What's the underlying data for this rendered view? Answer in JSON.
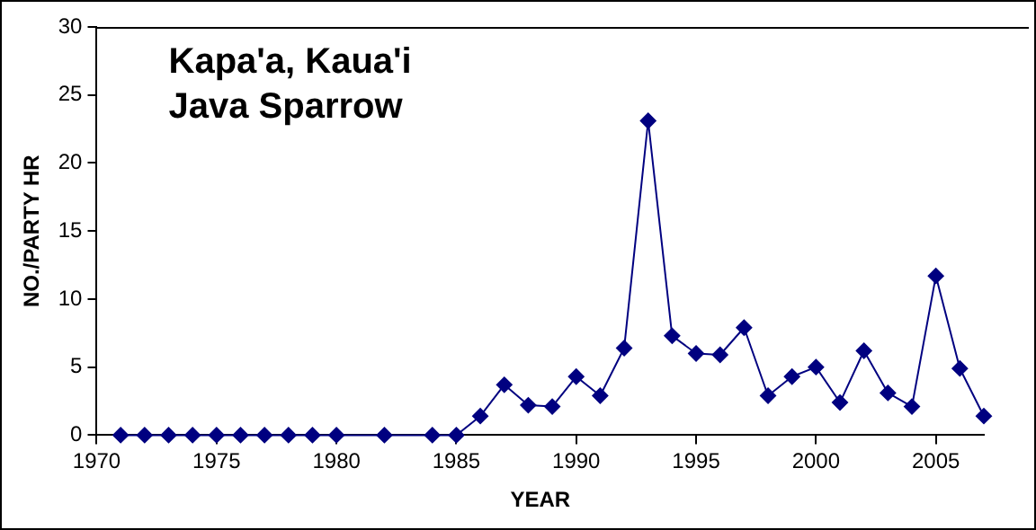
{
  "chart_data": {
    "type": "line",
    "title": "Kapa'a, Kaua'i\nJava Sparrow",
    "xlabel": "YEAR",
    "ylabel": "NO./PARTY HR",
    "x": [
      1971,
      1972,
      1973,
      1974,
      1975,
      1976,
      1977,
      1978,
      1979,
      1980,
      1982,
      1984,
      1985,
      1986,
      1987,
      1988,
      1989,
      1990,
      1991,
      1992,
      1993,
      1994,
      1995,
      1996,
      1997,
      1998,
      1999,
      2000,
      2001,
      2002,
      2003,
      2004,
      2005,
      2006,
      2007
    ],
    "series": [
      {
        "color": "#000080",
        "values": [
          0,
          0,
          0,
          0,
          0,
          0,
          0,
          0,
          0,
          0,
          0,
          0,
          0,
          1.4,
          3.7,
          2.2,
          2.1,
          4.3,
          2.9,
          6.4,
          23.1,
          7.3,
          6.0,
          5.9,
          7.9,
          2.9,
          4.3,
          5.0,
          2.4,
          6.2,
          3.1,
          2.1,
          11.7,
          4.9,
          1.4
        ]
      }
    ],
    "xlim": [
      1970,
      2007
    ],
    "xticks": [
      1970,
      1975,
      1980,
      1985,
      1990,
      1995,
      2000,
      2005
    ],
    "ylim": [
      0,
      30
    ],
    "yticks": [
      0,
      5,
      10,
      15,
      20,
      25,
      30
    ],
    "grid": false,
    "legend": false,
    "marker": "diamond",
    "line_style": "solid"
  }
}
